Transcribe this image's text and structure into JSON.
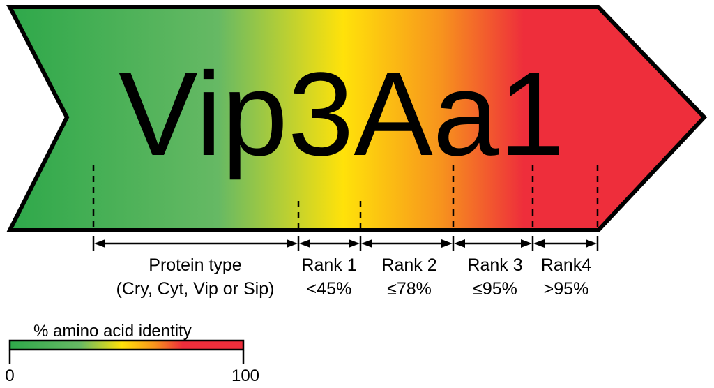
{
  "title": "Vip3Aa1",
  "segments": [
    {
      "line1": "Protein type",
      "line2": "(Cry, Cyt, Vip or Sip)"
    },
    {
      "line1": "Rank 1",
      "line2": "<45%"
    },
    {
      "line1": "Rank 2",
      "line2": "≤78%"
    },
    {
      "line1": "Rank 3",
      "line2": "≤95%"
    },
    {
      "line1": "Rank4",
      "line2": ">95%"
    }
  ],
  "legend": {
    "title": "% amino acid identity",
    "min_label": "0",
    "max_label": "100"
  },
  "colors": {
    "green": "#2ea84a",
    "light_green": "#66b964",
    "yellow": "#ffe20a",
    "orange": "#f7941d",
    "red": "#ee2e3b",
    "outline": "#000000"
  }
}
